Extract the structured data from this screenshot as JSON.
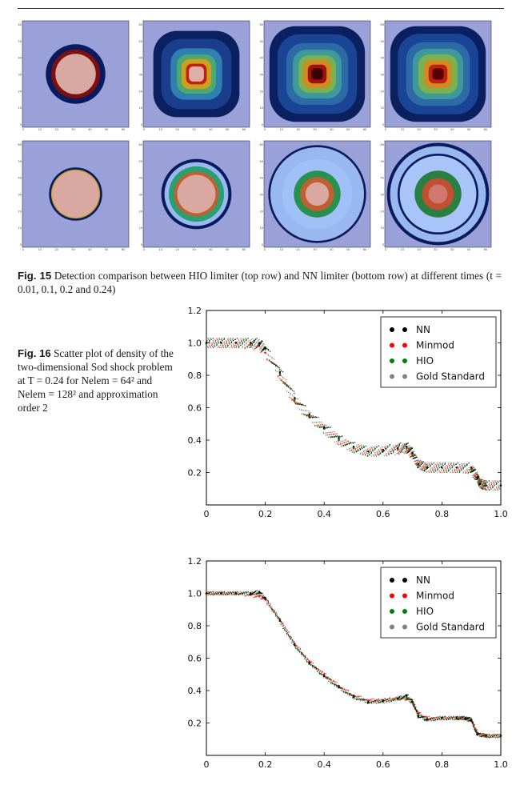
{
  "fig15": {
    "label": "Fig. 15",
    "text": "Detection comparison between HIO limiter (top row) and NN limiter (bottom row) at different times (t = 0.01, 0.1, 0.2 and 0.24)",
    "panel_tick_labels": [
      "0",
      "10",
      "20",
      "30",
      "40",
      "50",
      "60"
    ]
  },
  "fig16": {
    "label": "Fig. 16",
    "text": "Scatter plot of density of the two-dimensional Sod shock problem at T = 0.24 for Nelem = 64² and Nelem = 128² and approximation order 2"
  },
  "colors": {
    "NN": "#000000",
    "Minmod": "#ff0000",
    "HIO": "#008000",
    "Gold Standard": "#808080"
  },
  "chart_data": [
    {
      "type": "scatter",
      "xlim": [
        0,
        1.0
      ],
      "ylim": [
        0,
        1.2
      ],
      "x_ticks": [
        "0",
        "0.2",
        "0.4",
        "0.6",
        "0.8",
        "1.0"
      ],
      "y_ticks": [
        "0.2",
        "0.4",
        "0.6",
        "0.8",
        "1.0",
        "1.2"
      ],
      "legend_position": "top-right",
      "series": [
        {
          "name": "NN",
          "x": [
            0.0,
            0.05,
            0.1,
            0.15,
            0.18,
            0.2,
            0.25,
            0.3,
            0.35,
            0.4,
            0.45,
            0.5,
            0.55,
            0.6,
            0.65,
            0.68,
            0.7,
            0.72,
            0.75,
            0.8,
            0.85,
            0.9,
            0.92,
            0.93,
            0.95,
            1.0
          ],
          "y": [
            1.0,
            1.0,
            1.0,
            1.0,
            1.0,
            0.97,
            0.82,
            0.66,
            0.56,
            0.48,
            0.41,
            0.36,
            0.33,
            0.34,
            0.35,
            0.36,
            0.32,
            0.25,
            0.23,
            0.23,
            0.23,
            0.23,
            0.17,
            0.13,
            0.12,
            0.12
          ]
        },
        {
          "name": "Minmod",
          "x": [
            0.0,
            0.05,
            0.1,
            0.15,
            0.18,
            0.2,
            0.25,
            0.3,
            0.35,
            0.4,
            0.45,
            0.5,
            0.55,
            0.6,
            0.65,
            0.68,
            0.7,
            0.72,
            0.75,
            0.8,
            0.85,
            0.9,
            0.92,
            0.93,
            0.95,
            1.0
          ],
          "y": [
            1.0,
            1.0,
            1.0,
            0.99,
            0.98,
            0.94,
            0.8,
            0.64,
            0.54,
            0.47,
            0.4,
            0.35,
            0.33,
            0.33,
            0.34,
            0.35,
            0.31,
            0.25,
            0.23,
            0.23,
            0.23,
            0.22,
            0.17,
            0.13,
            0.12,
            0.12
          ]
        },
        {
          "name": "HIO",
          "x": [
            0.0,
            0.05,
            0.1,
            0.15,
            0.18,
            0.2,
            0.25,
            0.3,
            0.35,
            0.4,
            0.45,
            0.5,
            0.55,
            0.6,
            0.65,
            0.68,
            0.7,
            0.72,
            0.75,
            0.8,
            0.85,
            0.9,
            0.92,
            0.93,
            0.95,
            1.0
          ],
          "y": [
            1.0,
            1.0,
            1.0,
            1.0,
            0.99,
            0.96,
            0.81,
            0.65,
            0.55,
            0.47,
            0.4,
            0.35,
            0.33,
            0.33,
            0.35,
            0.35,
            0.32,
            0.25,
            0.23,
            0.23,
            0.23,
            0.22,
            0.17,
            0.13,
            0.12,
            0.12
          ]
        },
        {
          "name": "Gold Standard",
          "x": [
            0.0,
            0.05,
            0.1,
            0.15,
            0.18,
            0.2,
            0.25,
            0.3,
            0.35,
            0.4,
            0.45,
            0.5,
            0.55,
            0.6,
            0.65,
            0.68,
            0.7,
            0.72,
            0.75,
            0.8,
            0.85,
            0.9,
            0.92,
            0.93,
            0.95,
            1.0
          ],
          "y": [
            1.0,
            1.0,
            1.0,
            1.0,
            0.99,
            0.96,
            0.81,
            0.65,
            0.55,
            0.47,
            0.4,
            0.35,
            0.33,
            0.33,
            0.34,
            0.35,
            0.32,
            0.25,
            0.23,
            0.23,
            0.23,
            0.22,
            0.17,
            0.13,
            0.12,
            0.12
          ]
        }
      ]
    },
    {
      "type": "scatter",
      "xlim": [
        0,
        1.0
      ],
      "ylim": [
        0,
        1.2
      ],
      "x_ticks": [
        "0",
        "0.2",
        "0.4",
        "0.6",
        "0.8",
        "1.0"
      ],
      "y_ticks": [
        "0.2",
        "0.4",
        "0.6",
        "0.8",
        "1.0",
        "1.2"
      ],
      "legend_position": "top-right",
      "series": [
        {
          "name": "NN",
          "x": [
            0.0,
            0.05,
            0.1,
            0.15,
            0.18,
            0.2,
            0.25,
            0.3,
            0.35,
            0.4,
            0.45,
            0.5,
            0.55,
            0.6,
            0.65,
            0.68,
            0.7,
            0.72,
            0.75,
            0.8,
            0.85,
            0.88,
            0.9,
            0.92,
            0.95,
            1.0
          ],
          "y": [
            1.0,
            1.0,
            1.0,
            1.0,
            1.01,
            0.97,
            0.83,
            0.68,
            0.57,
            0.49,
            0.42,
            0.36,
            0.33,
            0.34,
            0.35,
            0.37,
            0.33,
            0.24,
            0.22,
            0.23,
            0.23,
            0.23,
            0.22,
            0.13,
            0.12,
            0.12
          ]
        },
        {
          "name": "Minmod",
          "x": [
            0.0,
            0.05,
            0.1,
            0.15,
            0.18,
            0.2,
            0.25,
            0.3,
            0.35,
            0.4,
            0.45,
            0.5,
            0.55,
            0.6,
            0.65,
            0.68,
            0.7,
            0.72,
            0.75,
            0.8,
            0.85,
            0.88,
            0.9,
            0.92,
            0.95,
            1.0
          ],
          "y": [
            1.0,
            1.0,
            1.0,
            0.99,
            0.98,
            0.96,
            0.84,
            0.69,
            0.58,
            0.5,
            0.43,
            0.37,
            0.34,
            0.34,
            0.35,
            0.35,
            0.33,
            0.26,
            0.23,
            0.23,
            0.23,
            0.23,
            0.21,
            0.14,
            0.12,
            0.12
          ]
        },
        {
          "name": "HIO",
          "x": [
            0.0,
            0.05,
            0.1,
            0.15,
            0.18,
            0.2,
            0.25,
            0.3,
            0.35,
            0.4,
            0.45,
            0.5,
            0.55,
            0.6,
            0.65,
            0.68,
            0.7,
            0.72,
            0.75,
            0.8,
            0.85,
            0.88,
            0.9,
            0.92,
            0.95,
            1.0
          ],
          "y": [
            1.0,
            1.0,
            1.0,
            1.0,
            1.0,
            0.97,
            0.83,
            0.68,
            0.57,
            0.49,
            0.42,
            0.36,
            0.33,
            0.33,
            0.35,
            0.36,
            0.33,
            0.25,
            0.22,
            0.23,
            0.23,
            0.23,
            0.22,
            0.13,
            0.12,
            0.12
          ]
        },
        {
          "name": "Gold Standard",
          "x": [
            0.0,
            0.05,
            0.1,
            0.15,
            0.18,
            0.2,
            0.25,
            0.3,
            0.35,
            0.4,
            0.45,
            0.5,
            0.55,
            0.6,
            0.65,
            0.68,
            0.7,
            0.72,
            0.75,
            0.8,
            0.85,
            0.88,
            0.9,
            0.92,
            0.95,
            1.0
          ],
          "y": [
            1.0,
            1.0,
            1.0,
            1.0,
            1.0,
            0.97,
            0.83,
            0.68,
            0.57,
            0.49,
            0.42,
            0.36,
            0.33,
            0.33,
            0.35,
            0.36,
            0.33,
            0.25,
            0.22,
            0.23,
            0.23,
            0.23,
            0.22,
            0.13,
            0.12,
            0.12
          ]
        }
      ]
    }
  ]
}
